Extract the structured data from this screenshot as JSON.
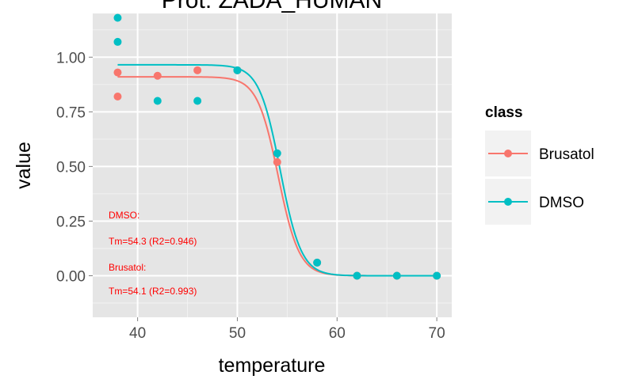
{
  "chart_data": {
    "type": "scatter",
    "title": "Prot: ZADA_HUMAN",
    "xlabel": "temperature",
    "ylabel": "value",
    "xlim": [
      35.5,
      71.5
    ],
    "ylim": [
      -0.19,
      1.2
    ],
    "x_ticks": [
      40,
      50,
      60,
      70
    ],
    "y_ticks": [
      0.0,
      0.25,
      0.5,
      0.75,
      1.0
    ],
    "x_tick_labels": [
      "40",
      "50",
      "60",
      "70"
    ],
    "y_tick_labels": [
      "0.00",
      "0.25",
      "0.50",
      "0.75",
      "1.00"
    ],
    "grid": true,
    "legend": {
      "title": "class",
      "position": "right"
    },
    "series": [
      {
        "name": "Brusatol",
        "color": "#F8766D",
        "points": [
          {
            "x": 38,
            "y": 0.93
          },
          {
            "x": 38,
            "y": 0.82
          },
          {
            "x": 42,
            "y": 0.915
          },
          {
            "x": 46,
            "y": 0.94
          },
          {
            "x": 50,
            "y": 0.94
          },
          {
            "x": 54,
            "y": 0.52
          },
          {
            "x": 58,
            "y": 0.06
          },
          {
            "x": 62,
            "y": 0.0
          },
          {
            "x": 66,
            "y": 0.0
          },
          {
            "x": 70,
            "y": 0.0
          }
        ],
        "fit": {
          "plateau": 0.91,
          "tm": 54.1,
          "slope": 0.95,
          "x_range": [
            38,
            70
          ]
        }
      },
      {
        "name": "DMSO",
        "color": "#00BFC4",
        "points": [
          {
            "x": 38,
            "y": 1.18
          },
          {
            "x": 38,
            "y": 1.07
          },
          {
            "x": 42,
            "y": 0.8
          },
          {
            "x": 46,
            "y": 0.8
          },
          {
            "x": 50,
            "y": 0.94
          },
          {
            "x": 54,
            "y": 0.56
          },
          {
            "x": 58,
            "y": 0.06
          },
          {
            "x": 62,
            "y": 0.0
          },
          {
            "x": 66,
            "y": 0.0
          },
          {
            "x": 70,
            "y": 0.0
          }
        ],
        "fit": {
          "plateau": 0.965,
          "tm": 54.3,
          "slope": 0.95,
          "x_range": [
            38,
            70
          ]
        }
      }
    ],
    "annotations": [
      "DMSO:",
      "Tm=54.3 (R2=0.946)",
      "Brusatol:",
      "Tm=54.1 (R2=0.993)"
    ]
  }
}
